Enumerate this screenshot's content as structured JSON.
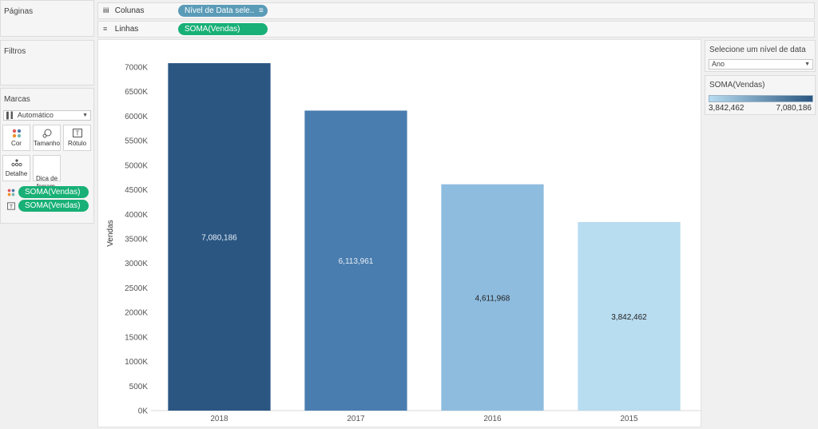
{
  "left_panels": {
    "pages_title": "Páginas",
    "filters_title": "Filtros",
    "marks_title": "Marcas",
    "mark_type": "Automático",
    "mark_buttons": [
      {
        "label": "Cor",
        "icon": "color-dots-icon"
      },
      {
        "label": "Tamanho",
        "icon": "size-icon"
      },
      {
        "label": "Rótulo",
        "icon": "label-icon"
      },
      {
        "label": "Detalhe",
        "icon": "detail-icon"
      },
      {
        "label": "Dica de\nferram.",
        "icon": "tooltip-icon"
      }
    ],
    "mark_fields": [
      {
        "label": "SOMA(Vendas)",
        "icon": "color-dots-icon"
      },
      {
        "label": "SOMA(Vendas)",
        "icon": "label-icon"
      }
    ]
  },
  "shelves": {
    "columns_label": "Colunas",
    "columns_pill": "Nível de Data sele..",
    "rows_label": "Linhas",
    "rows_pill": "SOMA(Vendas)"
  },
  "right_panels": {
    "param_title": "Selecione um nível de data",
    "param_value": "Ano",
    "legend_title": "SOMA(Vendas)",
    "legend_min": "3,842,462",
    "legend_max": "7,080,186",
    "gradient_start": "#b7dcf0",
    "gradient_end": "#2a5680"
  },
  "chart_data": {
    "type": "bar",
    "categories": [
      "2018",
      "2017",
      "2016",
      "2015"
    ],
    "values": [
      7080186,
      6113961,
      4611968,
      3842462
    ],
    "value_labels": [
      "7,080,186",
      "6,113,961",
      "4,611,968",
      "3,842,462"
    ],
    "bar_colors": [
      "#2b5682",
      "#4a7daf",
      "#8ebcdf",
      "#b8dcf0"
    ],
    "label_colors": [
      "#e6eef6",
      "#e6eef6",
      "#222222",
      "#222222"
    ],
    "ylabel": "Vendas",
    "ylim": [
      0,
      7000000
    ],
    "yticks": [
      0,
      500000,
      1000000,
      1500000,
      2000000,
      2500000,
      3000000,
      3500000,
      4000000,
      4500000,
      5000000,
      5500000,
      6000000,
      6500000,
      7000000
    ],
    "ytick_labels": [
      "0K",
      "500K",
      "1000K",
      "1500K",
      "2000K",
      "2500K",
      "3000K",
      "3500K",
      "4000K",
      "4500K",
      "5000K",
      "5500K",
      "6000K",
      "6500K",
      "7000K"
    ],
    "grid": false
  }
}
